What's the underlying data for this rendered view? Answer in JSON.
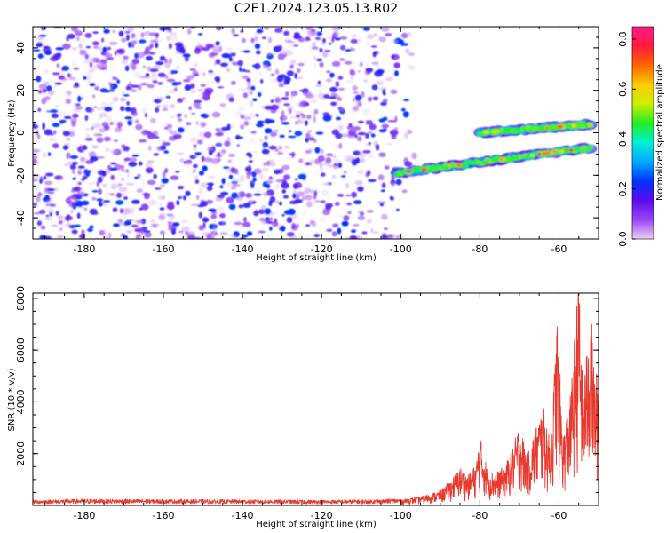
{
  "title": "C2E1.2024.123.05.13.R02",
  "chart_data": [
    {
      "type": "heatmap",
      "xlabel": "Height of straight line (km)",
      "ylabel": "Frequency (Hz)",
      "xlim": [
        -193,
        -50
      ],
      "ylim": [
        -50,
        50
      ],
      "xticks": [
        -180,
        -160,
        -140,
        -120,
        -100,
        -80,
        -60
      ],
      "yticks": [
        -40,
        -20,
        0,
        20,
        40
      ],
      "colorbar": {
        "label": "Normalized spectral amplitude",
        "range": [
          0,
          0.85
        ],
        "ticks": [
          0.0,
          0.2,
          0.4,
          0.6,
          0.8
        ],
        "colors": [
          "#e8d0f4",
          "#9a45f2",
          "#5b0af0",
          "#0033ff",
          "#00aaff",
          "#00f0d0",
          "#22ee22",
          "#ccee00",
          "#ffcc00",
          "#ff6600",
          "#ff1a40",
          "#ff1a8c"
        ]
      },
      "noise_region": {
        "x": [
          -193,
          -95
        ],
        "y": [
          -50,
          50
        ],
        "amplitude": [
          0.0,
          0.2
        ]
      },
      "tracks": [
        {
          "x_start": -101,
          "x_end": -52,
          "y_start": -19,
          "y_end": -7,
          "peak_amplitude": 0.85
        },
        {
          "x_start": -80,
          "x_end": -52,
          "y_start": 0,
          "y_end": 4,
          "peak_amplitude": 0.7
        }
      ]
    },
    {
      "type": "line",
      "xlabel": "Height of straight line (km)",
      "ylabel": "SNR (10 * v/v)",
      "xlim": [
        -193,
        -50
      ],
      "ylim": [
        0,
        8200
      ],
      "xticks": [
        -180,
        -160,
        -140,
        -120,
        -100,
        -80,
        -60
      ],
      "yticks": [
        2000,
        4000,
        6000,
        8000
      ],
      "series": [
        {
          "color": "#e8392e",
          "x": [
            -193,
            -180,
            -160,
            -140,
            -120,
            -105,
            -100,
            -95,
            -90,
            -87,
            -85,
            -83,
            -81,
            -80,
            -78,
            -76,
            -74,
            -72,
            -70,
            -68,
            -66,
            -64,
            -62,
            -60.5,
            -59,
            -57,
            -55,
            -54,
            -53,
            -52,
            -51
          ],
          "y": [
            150,
            180,
            170,
            160,
            150,
            170,
            200,
            300,
            500,
            900,
            1300,
            1000,
            1400,
            2400,
            1200,
            1100,
            1300,
            1800,
            2800,
            1700,
            2600,
            3400,
            2000,
            6600,
            2400,
            3800,
            8000,
            4000,
            5200,
            6800,
            4500
          ]
        }
      ]
    }
  ]
}
